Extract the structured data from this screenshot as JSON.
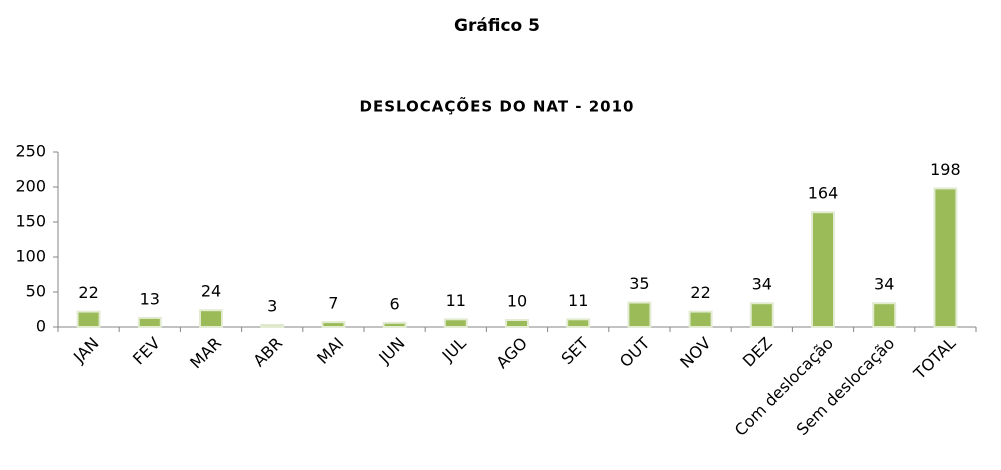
{
  "heading": "Gráfico 5",
  "chart_data": {
    "type": "bar",
    "title": "DESLOCAÇÕES DO NAT - 2010",
    "categories": [
      "JAN",
      "FEV",
      "MAR",
      "ABR",
      "MAI",
      "JUN",
      "JUL",
      "AGO",
      "SET",
      "OUT",
      "NOV",
      "DEZ",
      "Com deslocação",
      "Sem deslocação",
      "TOTAL"
    ],
    "values": [
      22,
      13,
      24,
      3,
      7,
      6,
      11,
      10,
      11,
      35,
      22,
      34,
      164,
      34,
      198
    ],
    "color": "#9bbb59",
    "ylim": [
      0,
      250
    ],
    "yticks": [
      0,
      50,
      100,
      150,
      200,
      250
    ],
    "grid": false
  }
}
